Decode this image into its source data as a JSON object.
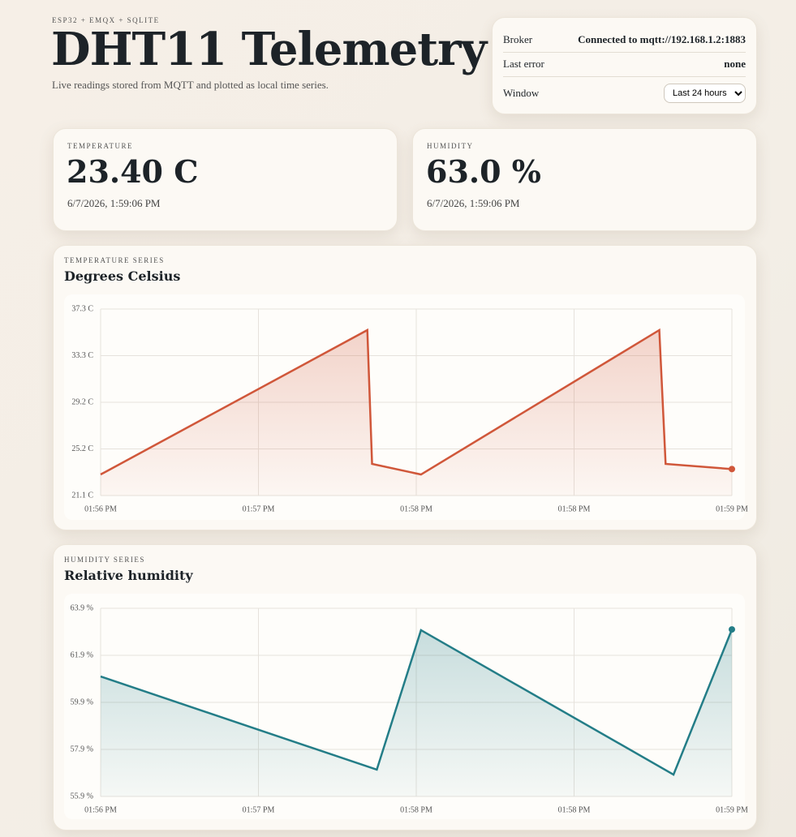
{
  "header": {
    "eyebrow": "ESP32 + EMQX + SQLITE",
    "title": "DHT11 Telemetry",
    "subtitle": "Live readings stored from MQTT and plotted as local time series."
  },
  "status": {
    "rows": [
      {
        "label": "Broker",
        "value": "Connected to mqtt://192.168.1.2:1883"
      },
      {
        "label": "Last error",
        "value": "none"
      }
    ],
    "window": {
      "label": "Window",
      "selected": "Last 24 hours"
    }
  },
  "cards": [
    {
      "label": "TEMPERATURE",
      "value": "23.40 C",
      "time": "6/7/2026, 1:59:06 PM"
    },
    {
      "label": "HUMIDITY",
      "value": "63.0 %",
      "time": "6/7/2026, 1:59:06 PM"
    }
  ],
  "charts": [
    {
      "type": "line",
      "eyebrow": "TEMPERATURE SERIES",
      "title": "Degrees Celsius",
      "color": "#d0573a",
      "x": [
        0,
        1.69,
        1.72,
        2.03,
        3.54,
        3.58,
        4
      ],
      "values": [
        22.93,
        35.47,
        23.85,
        22.93,
        35.47,
        23.85,
        23.4
      ],
      "xlim": [
        0,
        4
      ],
      "xticks": [
        {
          "value": 0,
          "label": "01:56 PM"
        },
        {
          "value": 1,
          "label": "01:57 PM"
        },
        {
          "value": 2,
          "label": "01:58 PM"
        },
        {
          "value": 3,
          "label": "01:58 PM"
        },
        {
          "value": 4,
          "label": "01:59 PM"
        }
      ],
      "ylim": [
        21.1,
        37.3
      ],
      "yticks": [
        {
          "value": 21.1,
          "label": "21.1 C"
        },
        {
          "value": 25.15,
          "label": "25.2 C"
        },
        {
          "value": 29.2,
          "label": "29.2 C"
        },
        {
          "value": 33.25,
          "label": "33.3 C"
        },
        {
          "value": 37.3,
          "label": "37.3 C"
        }
      ],
      "grid": true
    },
    {
      "type": "line",
      "eyebrow": "HUMIDITY SERIES",
      "title": "Relative humidity",
      "color": "#237d87",
      "x": [
        0,
        1.75,
        2.03,
        3.63,
        4
      ],
      "values": [
        61.0,
        57.04,
        62.97,
        56.83,
        63.0
      ],
      "xlim": [
        0,
        4
      ],
      "xticks": [
        {
          "value": 0,
          "label": "01:56 PM"
        },
        {
          "value": 1,
          "label": "01:57 PM"
        },
        {
          "value": 2,
          "label": "01:58 PM"
        },
        {
          "value": 3,
          "label": "01:58 PM"
        },
        {
          "value": 4,
          "label": "01:59 PM"
        }
      ],
      "ylim": [
        55.9,
        63.9
      ],
      "yticks": [
        {
          "value": 55.9,
          "label": "55.9 %"
        },
        {
          "value": 57.9,
          "label": "57.9 %"
        },
        {
          "value": 59.9,
          "label": "59.9 %"
        },
        {
          "value": 61.9,
          "label": "61.9 %"
        },
        {
          "value": 63.9,
          "label": "63.9 %"
        }
      ],
      "grid": true
    }
  ]
}
